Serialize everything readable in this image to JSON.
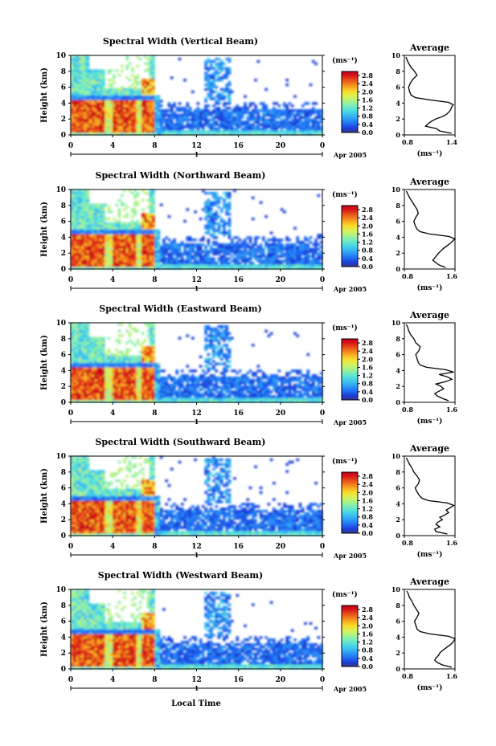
{
  "figure": {
    "xlabel": "Local Time",
    "date_label": "Apr 2005",
    "day_label": "1",
    "cbar_unit": "(ms⁻¹)",
    "avg_title": "Average",
    "avg_xlabel": "(ms⁻¹)",
    "ylabel": "Height (km)"
  },
  "colors": {
    "colormap": [
      "#3a3a8c",
      "#1b3cd6",
      "#1f66f2",
      "#2a8ef5",
      "#35b4f2",
      "#47d2e8",
      "#63e6cf",
      "#8cf0a8",
      "#b8f27a",
      "#dff050",
      "#f7dc2c",
      "#f8b023",
      "#f27c1c",
      "#e84a16",
      "#d8151b",
      "#c00019"
    ]
  },
  "chart_data": [
    {
      "type": "heatmap",
      "title": "Spectral Width (Vertical Beam)",
      "xlabel": "Local Time",
      "ylabel": "Height (km)",
      "x_ticks": [
        "0",
        "4",
        "8",
        "12",
        "16",
        "20",
        "0"
      ],
      "y_ticks": [
        "0",
        "2",
        "4",
        "6",
        "8",
        "10"
      ],
      "xlim": [
        0,
        24
      ],
      "ylim": [
        0,
        10
      ],
      "colorbar": {
        "unit": "(ms⁻¹)",
        "ticks": [
          "0.0",
          "0.4",
          "0.8",
          "1.2",
          "1.6",
          "2.0",
          "2.4",
          "2.8"
        ],
        "range": [
          0,
          3.0
        ]
      },
      "average_profile": {
        "title": "Average",
        "xlabel": "(ms⁻¹)",
        "x_ticks": [
          "0.8",
          "1.4"
        ],
        "xlim": [
          0.8,
          1.4
        ],
        "ylim": [
          0,
          10
        ],
        "heights": [
          0.2,
          0.5,
          0.8,
          1.1,
          1.4,
          1.7,
          2.0,
          2.3,
          2.6,
          2.9,
          3.2,
          3.5,
          3.8,
          4.1,
          4.4,
          4.7,
          5.0,
          5.5,
          6.0,
          6.5,
          7.0,
          7.5,
          8.0,
          8.5,
          9.0,
          9.5,
          9.8
        ],
        "values": [
          1.36,
          1.22,
          1.18,
          1.05,
          1.08,
          1.12,
          1.17,
          1.25,
          1.3,
          1.33,
          1.35,
          1.36,
          1.38,
          1.32,
          1.1,
          0.93,
          0.88,
          0.86,
          0.85,
          0.87,
          0.9,
          0.95,
          0.92,
          0.88,
          0.85,
          0.83,
          0.82
        ]
      }
    },
    {
      "type": "heatmap",
      "title": "Spectral Width (Northward Beam)",
      "xlabel": "Local Time",
      "ylabel": "Height (km)",
      "x_ticks": [
        "0",
        "4",
        "8",
        "12",
        "16",
        "20",
        "0"
      ],
      "y_ticks": [
        "0",
        "2",
        "4",
        "6",
        "8",
        "10"
      ],
      "xlim": [
        0,
        24
      ],
      "ylim": [
        0,
        10
      ],
      "colorbar": {
        "unit": "(ms⁻¹)",
        "ticks": [
          "0.0",
          "0.4",
          "0.8",
          "1.2",
          "1.6",
          "2.0",
          "2.4",
          "2.8"
        ],
        "range": [
          0,
          3.0
        ]
      },
      "average_profile": {
        "title": "Average",
        "xlabel": "(ms⁻¹)",
        "x_ticks": [
          "0.8",
          "1.6"
        ],
        "xlim": [
          0.8,
          1.6
        ],
        "ylim": [
          0,
          10
        ],
        "heights": [
          0.2,
          0.5,
          0.8,
          1.1,
          1.4,
          1.7,
          2.0,
          2.3,
          2.6,
          2.9,
          3.2,
          3.5,
          3.8,
          4.1,
          4.4,
          4.7,
          5.0,
          5.5,
          6.0,
          6.5,
          7.0,
          7.5,
          8.0,
          8.5,
          9.0,
          9.5,
          9.8
        ],
        "values": [
          1.45,
          1.35,
          1.3,
          1.25,
          1.28,
          1.31,
          1.34,
          1.38,
          1.42,
          1.47,
          1.52,
          1.56,
          1.6,
          1.5,
          1.2,
          1.05,
          1.0,
          0.97,
          0.95,
          0.98,
          1.02,
          1.0,
          0.96,
          0.92,
          0.88,
          0.85,
          0.83
        ]
      }
    },
    {
      "type": "heatmap",
      "title": "Spectral Width (Eastward Beam)",
      "xlabel": "Local Time",
      "ylabel": "Height (km)",
      "x_ticks": [
        "0",
        "4",
        "8",
        "12",
        "16",
        "20",
        "0"
      ],
      "y_ticks": [
        "0",
        "2",
        "4",
        "6",
        "8",
        "10"
      ],
      "xlim": [
        0,
        24
      ],
      "ylim": [
        0,
        10
      ],
      "colorbar": {
        "unit": "(ms⁻¹)",
        "ticks": [
          "0.0",
          "0.4",
          "0.8",
          "1.2",
          "1.6",
          "2.0",
          "2.4",
          "2.8"
        ],
        "range": [
          0,
          3.0
        ]
      },
      "average_profile": {
        "title": "Average",
        "xlabel": "(ms⁻¹)",
        "x_ticks": [
          "0.8",
          "1.6"
        ],
        "xlim": [
          0.8,
          1.6
        ],
        "ylim": [
          0,
          10
        ],
        "heights": [
          0.2,
          0.5,
          0.8,
          1.1,
          1.4,
          1.7,
          2.0,
          2.3,
          2.6,
          2.9,
          3.2,
          3.5,
          3.8,
          4.1,
          4.4,
          4.7,
          5.0,
          5.5,
          6.0,
          6.5,
          7.0,
          7.5,
          8.0,
          8.5,
          9.0,
          9.5,
          9.8
        ],
        "values": [
          1.5,
          1.4,
          1.32,
          1.28,
          1.35,
          1.42,
          1.38,
          1.3,
          1.45,
          1.55,
          1.48,
          1.35,
          1.58,
          1.45,
          1.15,
          1.05,
          1.02,
          1.0,
          0.98,
          1.03,
          1.05,
          0.98,
          0.95,
          0.9,
          0.87,
          0.85,
          0.83
        ]
      }
    },
    {
      "type": "heatmap",
      "title": "Spectral Width (Southward Beam)",
      "xlabel": "Local Time",
      "ylabel": "Height (km)",
      "x_ticks": [
        "0",
        "4",
        "8",
        "12",
        "16",
        "20",
        "0"
      ],
      "y_ticks": [
        "0",
        "2",
        "4",
        "6",
        "8",
        "10"
      ],
      "xlim": [
        0,
        24
      ],
      "ylim": [
        0,
        10
      ],
      "colorbar": {
        "unit": "(ms⁻¹)",
        "ticks": [
          "0.0",
          "0.4",
          "0.8",
          "1.2",
          "1.6",
          "2.0",
          "2.4",
          "2.8"
        ],
        "range": [
          0,
          3.0
        ]
      },
      "average_profile": {
        "title": "Average",
        "xlabel": "(ms⁻¹)",
        "x_ticks": [
          "0.8",
          "1.6"
        ],
        "xlim": [
          0.8,
          1.6
        ],
        "ylim": [
          0,
          10
        ],
        "heights": [
          0.2,
          0.5,
          0.8,
          1.1,
          1.4,
          1.7,
          2.0,
          2.3,
          2.6,
          2.9,
          3.2,
          3.5,
          3.8,
          4.1,
          4.4,
          4.7,
          5.0,
          5.5,
          6.0,
          6.5,
          7.0,
          7.5,
          8.0,
          8.5,
          9.0,
          9.5,
          9.8
        ],
        "values": [
          1.48,
          1.3,
          1.28,
          1.36,
          1.3,
          1.33,
          1.4,
          1.36,
          1.44,
          1.5,
          1.46,
          1.52,
          1.58,
          1.48,
          1.18,
          1.08,
          1.04,
          1.0,
          0.97,
          1.02,
          1.04,
          1.0,
          0.95,
          0.92,
          0.88,
          0.85,
          0.83
        ]
      }
    },
    {
      "type": "heatmap",
      "title": "Spectral Width (Westward Beam)",
      "xlabel": "Local Time",
      "ylabel": "Height (km)",
      "x_ticks": [
        "0",
        "4",
        "8",
        "12",
        "16",
        "20",
        "0"
      ],
      "y_ticks": [
        "0",
        "2",
        "4",
        "6",
        "8",
        "10"
      ],
      "xlim": [
        0,
        24
      ],
      "ylim": [
        0,
        10
      ],
      "colorbar": {
        "unit": "(ms⁻¹)",
        "ticks": [
          "0.0",
          "0.4",
          "0.8",
          "1.2",
          "1.6",
          "2.0",
          "2.4",
          "2.8"
        ],
        "range": [
          0,
          3.0
        ]
      },
      "average_profile": {
        "title": "Average",
        "xlabel": "(ms⁻¹)",
        "x_ticks": [
          "0.8",
          "1.6"
        ],
        "xlim": [
          0.8,
          1.6
        ],
        "ylim": [
          0,
          10
        ],
        "heights": [
          0.2,
          0.5,
          0.8,
          1.1,
          1.4,
          1.7,
          2.0,
          2.3,
          2.6,
          2.9,
          3.2,
          3.5,
          3.8,
          4.1,
          4.4,
          4.7,
          5.0,
          5.5,
          6.0,
          6.5,
          7.0,
          7.5,
          8.0,
          8.5,
          9.0,
          9.5,
          9.8
        ],
        "values": [
          1.55,
          1.4,
          1.32,
          1.28,
          1.3,
          1.34,
          1.36,
          1.4,
          1.45,
          1.5,
          1.55,
          1.58,
          1.6,
          1.5,
          1.2,
          1.05,
          1.0,
          0.98,
          0.96,
          1.0,
          1.03,
          0.99,
          0.95,
          0.92,
          0.88,
          0.86,
          0.84
        ]
      }
    }
  ]
}
